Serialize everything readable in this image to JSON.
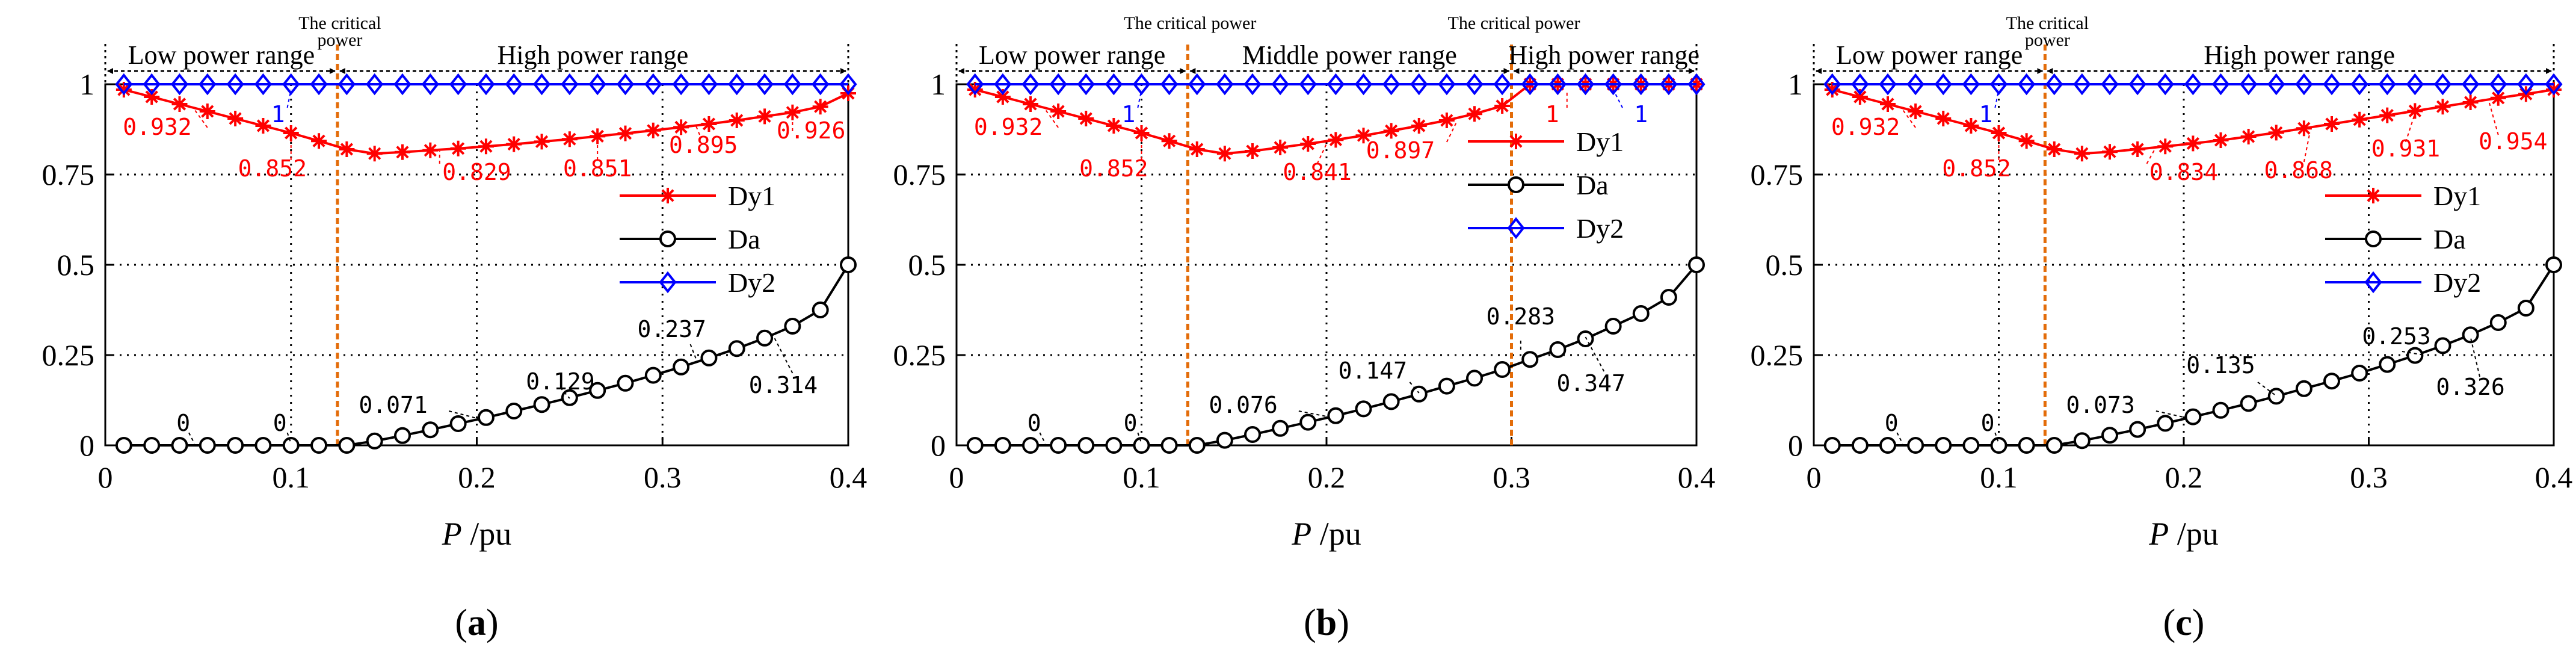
{
  "chart_data": [
    {
      "type": "line",
      "label": "a",
      "x": [
        0.01,
        0.025,
        0.04,
        0.055,
        0.07,
        0.085,
        0.1,
        0.115,
        0.13,
        0.145,
        0.16,
        0.175,
        0.19,
        0.205,
        0.22,
        0.235,
        0.25,
        0.265,
        0.28,
        0.295,
        0.31,
        0.325,
        0.34,
        0.355,
        0.37,
        0.385,
        0.4
      ],
      "xlim": [
        0,
        0.4
      ],
      "ylim": [
        0,
        1
      ],
      "xticks": [
        "0",
        "0.1",
        "0.2",
        "0.3",
        "0.4"
      ],
      "yticks": [
        "0",
        "0.25",
        "0.5",
        "0.75",
        "1"
      ],
      "xlabel_italic": "P",
      "xlabel_rest": " /pu",
      "gridx": [
        0.1,
        0.2,
        0.3
      ],
      "gridy": [
        0.25,
        0.5,
        0.75
      ],
      "critical": [
        0.125
      ],
      "ranges": [
        {
          "label": "Low power range",
          "from": 0,
          "to": 0.125
        },
        {
          "label": "High power range",
          "from": 0.125,
          "to": 0.4
        }
      ],
      "critical_labels": [
        {
          "at": 0.125,
          "lines": [
            "The critical",
            "power"
          ]
        }
      ],
      "series": [
        {
          "name": "Dy1",
          "color": "#ff0000",
          "marker": "star",
          "values": [
            0.985,
            0.965,
            0.945,
            0.925,
            0.905,
            0.885,
            0.865,
            0.843,
            0.82,
            0.808,
            0.812,
            0.817,
            0.822,
            0.828,
            0.834,
            0.841,
            0.848,
            0.856,
            0.864,
            0.872,
            0.881,
            0.89,
            0.9,
            0.911,
            0.922,
            0.938,
            0.975
          ]
        },
        {
          "name": "Da",
          "color": "#000000",
          "marker": "circle",
          "values": [
            0,
            0,
            0,
            0,
            0,
            0,
            0,
            0,
            0,
            0.012,
            0.027,
            0.043,
            0.06,
            0.077,
            0.095,
            0.113,
            0.132,
            0.152,
            0.172,
            0.194,
            0.217,
            0.242,
            0.268,
            0.297,
            0.33,
            0.375,
            0.5
          ]
        },
        {
          "name": "Dy2",
          "color": "#0000ff",
          "marker": "diamond",
          "values": [
            1,
            1,
            1,
            1,
            1,
            1,
            1,
            1,
            1,
            1,
            1,
            1,
            1,
            1,
            1,
            1,
            1,
            1,
            1,
            1,
            1,
            1,
            1,
            1,
            1,
            1,
            1
          ]
        }
      ],
      "annotations": [
        {
          "text": "0.932",
          "color": "#ff0000",
          "x": 0.028,
          "y": 0.86,
          "lx1": 0.055,
          "ly1": 0.88,
          "lx2": 0.048,
          "ly2": 0.93
        },
        {
          "text": "1",
          "color": "#0000ff",
          "x": 0.093,
          "y": 0.895,
          "lx1": 0.098,
          "ly1": 0.935,
          "lx2": 0.1,
          "ly2": 0.985
        },
        {
          "text": "0.852",
          "color": "#ff0000",
          "x": 0.09,
          "y": 0.745,
          "lx1": 0.1,
          "ly1": 0.79,
          "lx2": 0.1,
          "ly2": 0.855
        },
        {
          "text": "0.829",
          "color": "#ff0000",
          "x": 0.2,
          "y": 0.735,
          "lx1": 0.18,
          "ly1": 0.78,
          "lx2": 0.18,
          "ly2": 0.815
        },
        {
          "text": "0.851",
          "color": "#ff0000",
          "x": 0.265,
          "y": 0.745,
          "lx1": 0.265,
          "ly1": 0.79,
          "lx2": 0.265,
          "ly2": 0.85
        },
        {
          "text": "0.895",
          "color": "#ff0000",
          "x": 0.322,
          "y": 0.81,
          "lx1": 0.32,
          "ly1": 0.86,
          "lx2": 0.318,
          "ly2": 0.885
        },
        {
          "text": "0.926",
          "color": "#ff0000",
          "x": 0.38,
          "y": 0.85,
          "lx1": 0.37,
          "ly1": 0.87,
          "lx2": 0.37,
          "ly2": 0.922
        },
        {
          "text": "0",
          "color": "#000000",
          "x": 0.042,
          "y": 0.04,
          "lx1": 0.045,
          "ly1": 0.035,
          "lx2": 0.048,
          "ly2": 0.005
        },
        {
          "text": "0",
          "color": "#000000",
          "x": 0.094,
          "y": 0.04,
          "lx1": 0.098,
          "ly1": 0.035,
          "lx2": 0.1,
          "ly2": 0.005
        },
        {
          "text": "0.071",
          "color": "#000000",
          "x": 0.155,
          "y": 0.09,
          "lx1": 0.185,
          "ly1": 0.095,
          "lx2": 0.2,
          "ly2": 0.075
        },
        {
          "text": "0.129",
          "color": "#000000",
          "x": 0.245,
          "y": 0.155,
          "lx1": 0.245,
          "ly1": 0.16,
          "lx2": 0.25,
          "ly2": 0.13
        },
        {
          "text": "0.237",
          "color": "#000000",
          "x": 0.305,
          "y": 0.3,
          "lx1": 0.315,
          "ly1": 0.28,
          "lx2": 0.318,
          "ly2": 0.24
        },
        {
          "text": "0.314",
          "color": "#000000",
          "x": 0.365,
          "y": 0.145,
          "lx1": 0.37,
          "ly1": 0.2,
          "lx2": 0.36,
          "ly2": 0.3
        }
      ],
      "legend_position": "middle-right"
    },
    {
      "type": "line",
      "label": "b",
      "x": [
        0.01,
        0.025,
        0.04,
        0.055,
        0.07,
        0.085,
        0.1,
        0.115,
        0.13,
        0.145,
        0.16,
        0.175,
        0.19,
        0.205,
        0.22,
        0.235,
        0.25,
        0.265,
        0.28,
        0.295,
        0.31,
        0.325,
        0.34,
        0.355,
        0.37,
        0.385,
        0.4
      ],
      "xlim": [
        0,
        0.4
      ],
      "ylim": [
        0,
        1
      ],
      "xticks": [
        "0",
        "0.1",
        "0.2",
        "0.3",
        "0.4"
      ],
      "yticks": [
        "0",
        "0.25",
        "0.5",
        "0.75",
        "1"
      ],
      "xlabel_italic": "P",
      "xlabel_rest": " /pu",
      "gridx": [
        0.1,
        0.2
      ],
      "gridy": [
        0.25,
        0.5,
        0.75
      ],
      "critical": [
        0.125,
        0.3
      ],
      "ranges": [
        {
          "label": "Low power range",
          "from": 0,
          "to": 0.125
        },
        {
          "label": "Middle power range",
          "from": 0.125,
          "to": 0.3
        },
        {
          "label": "High power range",
          "from": 0.3,
          "to": 0.4
        }
      ],
      "critical_labels": [
        {
          "at": 0.125,
          "lines": [
            "The critical power"
          ]
        },
        {
          "at": 0.3,
          "lines": [
            "The critical power"
          ]
        }
      ],
      "series": [
        {
          "name": "Dy1",
          "color": "#ff0000",
          "marker": "star",
          "values": [
            0.985,
            0.965,
            0.945,
            0.925,
            0.905,
            0.885,
            0.865,
            0.843,
            0.82,
            0.808,
            0.815,
            0.825,
            0.835,
            0.846,
            0.858,
            0.871,
            0.885,
            0.9,
            0.918,
            0.94,
            1,
            1,
            1,
            1,
            1,
            1,
            1
          ]
        },
        {
          "name": "Da",
          "color": "#000000",
          "marker": "circle",
          "values": [
            0,
            0,
            0,
            0,
            0,
            0,
            0,
            0,
            0,
            0.014,
            0.03,
            0.047,
            0.064,
            0.082,
            0.101,
            0.121,
            0.142,
            0.164,
            0.186,
            0.21,
            0.238,
            0.265,
            0.295,
            0.33,
            0.365,
            0.41,
            0.5
          ]
        },
        {
          "name": "Dy2",
          "color": "#0000ff",
          "marker": "diamond",
          "values": [
            1,
            1,
            1,
            1,
            1,
            1,
            1,
            1,
            1,
            1,
            1,
            1,
            1,
            1,
            1,
            1,
            1,
            1,
            1,
            1,
            1,
            1,
            1,
            1,
            1,
            1,
            1
          ]
        }
      ],
      "annotations": [
        {
          "text": "0.932",
          "color": "#ff0000",
          "x": 0.028,
          "y": 0.86,
          "lx1": 0.055,
          "ly1": 0.88,
          "lx2": 0.048,
          "ly2": 0.93
        },
        {
          "text": "1",
          "color": "#0000ff",
          "x": 0.093,
          "y": 0.895,
          "lx1": 0.098,
          "ly1": 0.935,
          "lx2": 0.1,
          "ly2": 0.985
        },
        {
          "text": "0.852",
          "color": "#ff0000",
          "x": 0.085,
          "y": 0.745,
          "lx1": 0.1,
          "ly1": 0.79,
          "lx2": 0.1,
          "ly2": 0.855
        },
        {
          "text": "0.841",
          "color": "#ff0000",
          "x": 0.195,
          "y": 0.735,
          "lx1": 0.195,
          "ly1": 0.78,
          "lx2": 0.2,
          "ly2": 0.835
        },
        {
          "text": "0.897",
          "color": "#ff0000",
          "x": 0.24,
          "y": 0.795,
          "lx1": 0.265,
          "ly1": 0.84,
          "lx2": 0.27,
          "ly2": 0.892
        },
        {
          "text": "1",
          "color": "#ff0000",
          "x": 0.322,
          "y": 0.895,
          "lx1": 0.33,
          "ly1": 0.935,
          "lx2": 0.33,
          "ly2": 0.985
        },
        {
          "text": "1",
          "color": "#0000ff",
          "x": 0.37,
          "y": 0.895,
          "lx1": 0.36,
          "ly1": 0.935,
          "lx2": 0.355,
          "ly2": 0.985
        },
        {
          "text": "0",
          "color": "#000000",
          "x": 0.042,
          "y": 0.04,
          "lx1": 0.045,
          "ly1": 0.035,
          "lx2": 0.048,
          "ly2": 0.005
        },
        {
          "text": "0",
          "color": "#000000",
          "x": 0.094,
          "y": 0.04,
          "lx1": 0.098,
          "ly1": 0.035,
          "lx2": 0.1,
          "ly2": 0.005
        },
        {
          "text": "0.076",
          "color": "#000000",
          "x": 0.155,
          "y": 0.09,
          "lx1": 0.185,
          "ly1": 0.095,
          "lx2": 0.2,
          "ly2": 0.08
        },
        {
          "text": "0.147",
          "color": "#000000",
          "x": 0.225,
          "y": 0.185,
          "lx1": 0.245,
          "ly1": 0.175,
          "lx2": 0.25,
          "ly2": 0.145
        },
        {
          "text": "0.283",
          "color": "#000000",
          "x": 0.305,
          "y": 0.335,
          "lx1": 0.305,
          "ly1": 0.29,
          "lx2": 0.305,
          "ly2": 0.26
        },
        {
          "text": "0.347",
          "color": "#000000",
          "x": 0.343,
          "y": 0.15,
          "lx1": 0.35,
          "ly1": 0.205,
          "lx2": 0.34,
          "ly2": 0.3
        }
      ],
      "legend_position": "upper-right"
    },
    {
      "type": "line",
      "label": "c",
      "x": [
        0.01,
        0.025,
        0.04,
        0.055,
        0.07,
        0.085,
        0.1,
        0.115,
        0.13,
        0.145,
        0.16,
        0.175,
        0.19,
        0.205,
        0.22,
        0.235,
        0.25,
        0.265,
        0.28,
        0.295,
        0.31,
        0.325,
        0.34,
        0.355,
        0.37,
        0.385,
        0.4
      ],
      "xlim": [
        0,
        0.4
      ],
      "ylim": [
        0,
        1
      ],
      "xticks": [
        "0",
        "0.1",
        "0.2",
        "0.3",
        "0.4"
      ],
      "yticks": [
        "0",
        "0.25",
        "0.5",
        "0.75",
        "1"
      ],
      "xlabel_italic": "P",
      "xlabel_rest": " /pu",
      "gridx": [
        0.1,
        0.2,
        0.3
      ],
      "gridy": [
        0.25,
        0.5,
        0.75
      ],
      "critical": [
        0.125
      ],
      "ranges": [
        {
          "label": "Low power range",
          "from": 0,
          "to": 0.125
        },
        {
          "label": "High power range",
          "from": 0.125,
          "to": 0.4
        }
      ],
      "critical_labels": [
        {
          "at": 0.125,
          "lines": [
            "The critical",
            "power"
          ]
        }
      ],
      "series": [
        {
          "name": "Dy1",
          "color": "#ff0000",
          "marker": "star",
          "values": [
            0.985,
            0.965,
            0.945,
            0.925,
            0.905,
            0.885,
            0.865,
            0.843,
            0.82,
            0.808,
            0.813,
            0.82,
            0.828,
            0.836,
            0.845,
            0.855,
            0.866,
            0.878,
            0.89,
            0.902,
            0.914,
            0.926,
            0.938,
            0.95,
            0.962,
            0.973,
            0.985
          ]
        },
        {
          "name": "Da",
          "color": "#000000",
          "marker": "circle",
          "values": [
            0,
            0,
            0,
            0,
            0,
            0,
            0,
            0,
            0,
            0.013,
            0.028,
            0.044,
            0.061,
            0.079,
            0.097,
            0.116,
            0.136,
            0.157,
            0.178,
            0.2,
            0.224,
            0.249,
            0.276,
            0.306,
            0.34,
            0.38,
            0.5
          ]
        },
        {
          "name": "Dy2",
          "color": "#0000ff",
          "marker": "diamond",
          "values": [
            1,
            1,
            1,
            1,
            1,
            1,
            1,
            1,
            1,
            1,
            1,
            1,
            1,
            1,
            1,
            1,
            1,
            1,
            1,
            1,
            1,
            1,
            1,
            1,
            1,
            1,
            1
          ]
        }
      ],
      "annotations": [
        {
          "text": "0.932",
          "color": "#ff0000",
          "x": 0.028,
          "y": 0.86,
          "lx1": 0.055,
          "ly1": 0.88,
          "lx2": 0.048,
          "ly2": 0.93
        },
        {
          "text": "1",
          "color": "#0000ff",
          "x": 0.093,
          "y": 0.895,
          "lx1": 0.098,
          "ly1": 0.935,
          "lx2": 0.1,
          "ly2": 0.985
        },
        {
          "text": "0.852",
          "color": "#ff0000",
          "x": 0.088,
          "y": 0.745,
          "lx1": 0.1,
          "ly1": 0.79,
          "lx2": 0.1,
          "ly2": 0.855
        },
        {
          "text": "0.834",
          "color": "#ff0000",
          "x": 0.2,
          "y": 0.735,
          "lx1": 0.18,
          "ly1": 0.78,
          "lx2": 0.185,
          "ly2": 0.826
        },
        {
          "text": "0.868",
          "color": "#ff0000",
          "x": 0.262,
          "y": 0.74,
          "lx1": 0.265,
          "ly1": 0.785,
          "lx2": 0.268,
          "ly2": 0.862
        },
        {
          "text": "0.931",
          "color": "#ff0000",
          "x": 0.32,
          "y": 0.8,
          "lx1": 0.32,
          "ly1": 0.84,
          "lx2": 0.325,
          "ly2": 0.92
        },
        {
          "text": "0.954",
          "color": "#ff0000",
          "x": 0.378,
          "y": 0.82,
          "lx1": 0.37,
          "ly1": 0.86,
          "lx2": 0.365,
          "ly2": 0.952
        },
        {
          "text": "0",
          "color": "#000000",
          "x": 0.042,
          "y": 0.04,
          "lx1": 0.045,
          "ly1": 0.035,
          "lx2": 0.048,
          "ly2": 0.005
        },
        {
          "text": "0",
          "color": "#000000",
          "x": 0.094,
          "y": 0.04,
          "lx1": 0.098,
          "ly1": 0.035,
          "lx2": 0.1,
          "ly2": 0.005
        },
        {
          "text": "0.073",
          "color": "#000000",
          "x": 0.155,
          "y": 0.09,
          "lx1": 0.185,
          "ly1": 0.095,
          "lx2": 0.2,
          "ly2": 0.078
        },
        {
          "text": "0.135",
          "color": "#000000",
          "x": 0.22,
          "y": 0.2,
          "lx1": 0.24,
          "ly1": 0.175,
          "lx2": 0.25,
          "ly2": 0.137
        },
        {
          "text": "0.253",
          "color": "#000000",
          "x": 0.315,
          "y": 0.28,
          "lx1": 0.318,
          "ly1": 0.26,
          "lx2": 0.33,
          "ly2": 0.25
        },
        {
          "text": "0.326",
          "color": "#000000",
          "x": 0.355,
          "y": 0.14,
          "lx1": 0.36,
          "ly1": 0.19,
          "lx2": 0.355,
          "ly2": 0.3
        }
      ],
      "legend_position": "middle-right"
    }
  ]
}
